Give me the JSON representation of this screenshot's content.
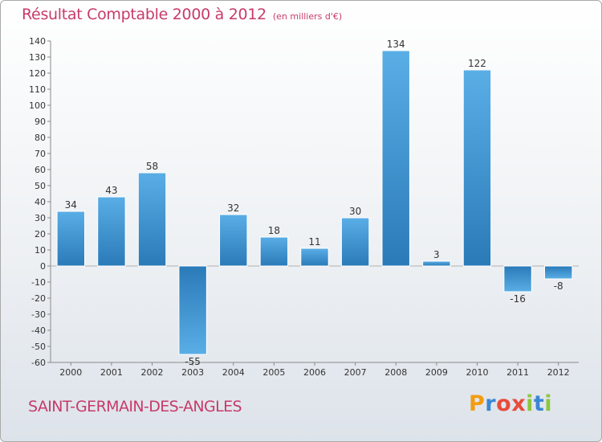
{
  "title": "Résultat Comptable 2000 à 2012",
  "subtitle": "(en milliers d'€)",
  "commune": "SAINT-GERMAIN-DES-ANGLES",
  "logo": {
    "letters": [
      "P",
      "r",
      "o",
      "x",
      "i",
      "t",
      "i"
    ],
    "colors": [
      "#f39c12",
      "#3a86d4",
      "#e74c3c",
      "#e74c3c",
      "#8cc63f",
      "#3a86d4",
      "#8cc63f"
    ]
  },
  "colors": {
    "title": "#c83a6a",
    "bar_light": "#5aaee6",
    "bar_dark": "#2a7ab8"
  },
  "chart_data": {
    "type": "bar",
    "title": "Résultat Comptable 2000 à 2012",
    "subtitle": "(en milliers d'€)",
    "xlabel": "",
    "ylabel": "",
    "categories": [
      "2000",
      "2001",
      "2002",
      "2003",
      "2004",
      "2005",
      "2006",
      "2007",
      "2008",
      "2009",
      "2010",
      "2011",
      "2012"
    ],
    "values": [
      34,
      43,
      58,
      -55,
      32,
      18,
      11,
      30,
      134,
      3,
      122,
      -16,
      -8
    ],
    "data_labels": [
      "34",
      "43",
      "58",
      "-55",
      "32",
      "18",
      "11",
      "30",
      "134",
      "3",
      "122",
      "-16",
      "-8"
    ],
    "ylim": [
      -60,
      140
    ],
    "yticks": [
      140,
      130,
      120,
      110,
      100,
      90,
      80,
      70,
      60,
      50,
      40,
      30,
      20,
      10,
      0,
      -10,
      -20,
      -30,
      -40,
      -50,
      -60
    ],
    "grid": false,
    "legend": "none"
  }
}
